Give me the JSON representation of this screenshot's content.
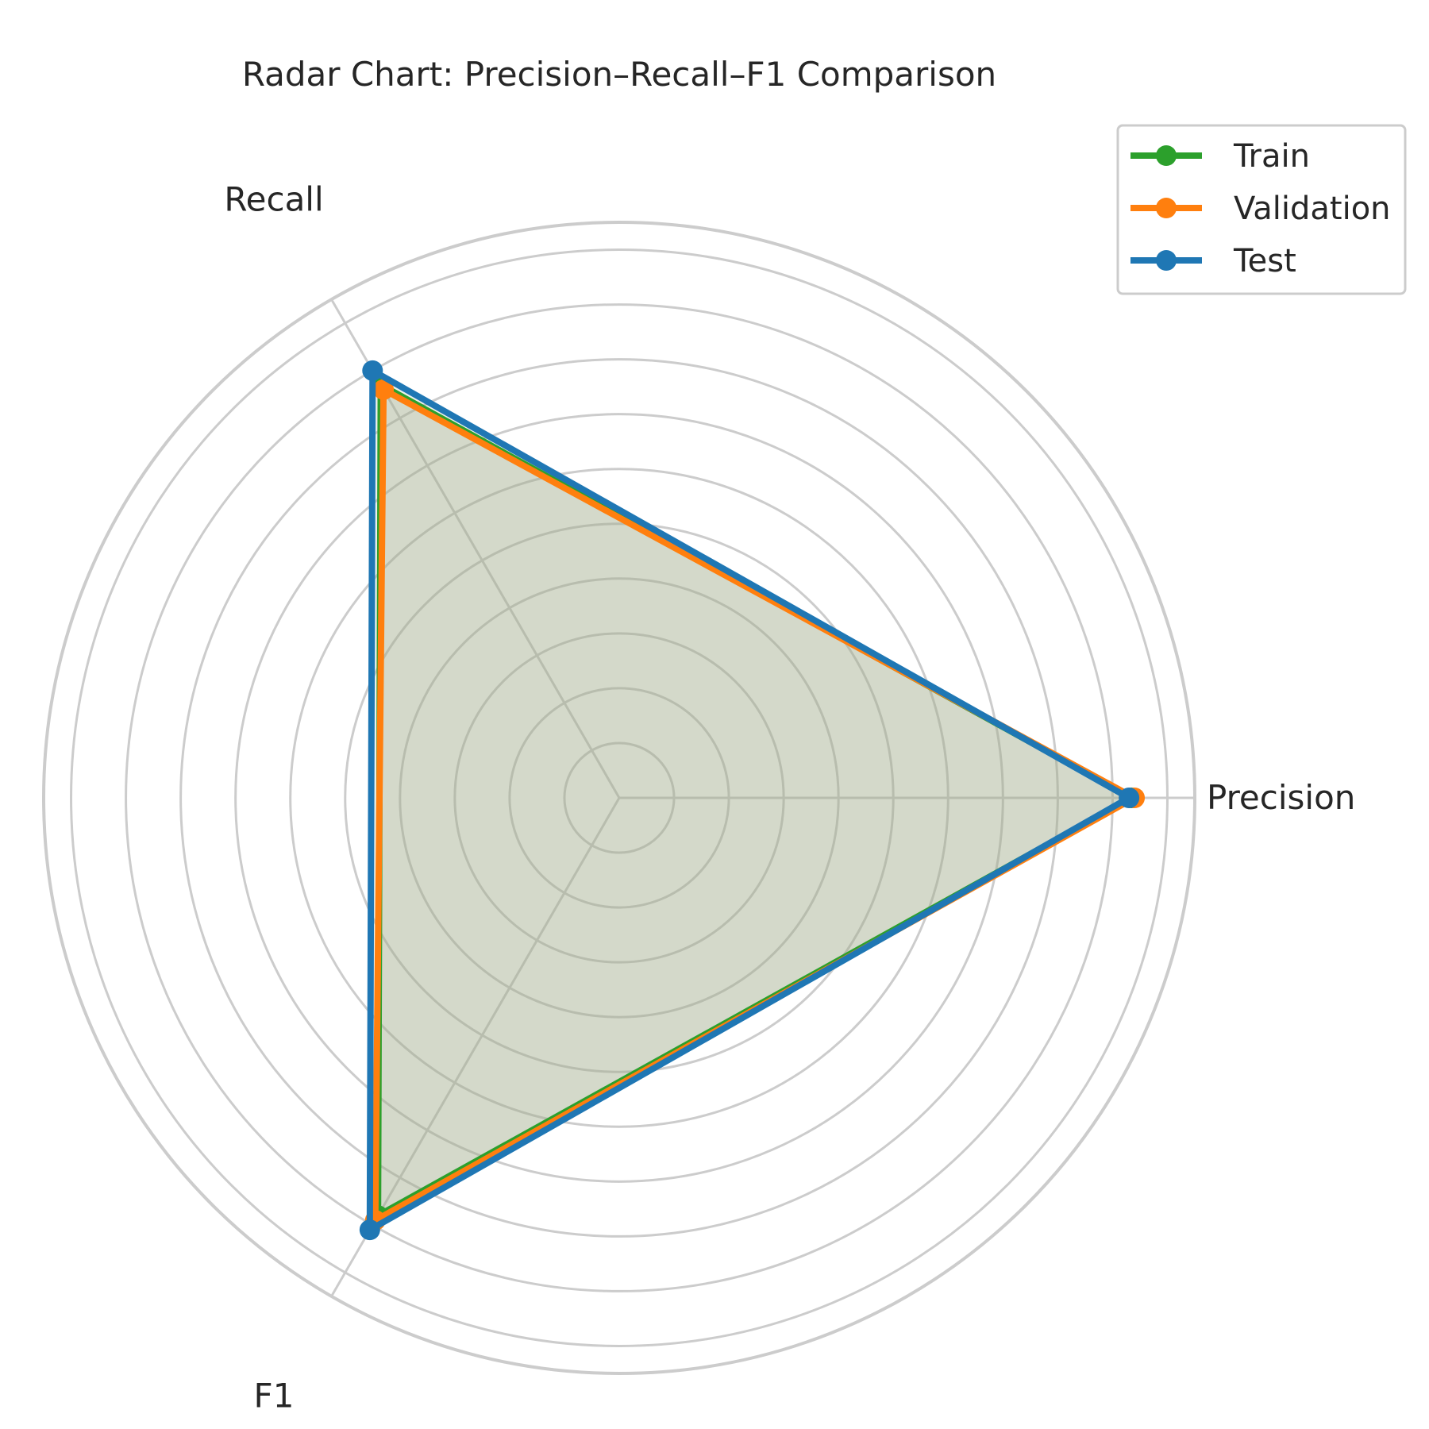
{
  "chart_data": {
    "type": "radar",
    "title": "Radar Chart: Precision–Recall–F1 Comparison",
    "categories": [
      "Precision",
      "Recall",
      "F1"
    ],
    "rlim": [
      0,
      1.05
    ],
    "rings": [
      0.1,
      0.2,
      0.3,
      0.4,
      0.5,
      0.6,
      0.7,
      0.8,
      0.9,
      1.0
    ],
    "show_radial_tick_labels": false,
    "grid": true,
    "legend_position": "top-right",
    "fill_color": "#a0aa8c",
    "series": [
      {
        "name": "Train",
        "color": "#2ca02c",
        "values": [
          0.935,
          0.87,
          0.88
        ]
      },
      {
        "name": "Validation",
        "color": "#ff7f0e",
        "values": [
          0.94,
          0.86,
          0.89
        ]
      },
      {
        "name": "Test",
        "color": "#1f77b4",
        "values": [
          0.93,
          0.9,
          0.91
        ]
      }
    ]
  }
}
